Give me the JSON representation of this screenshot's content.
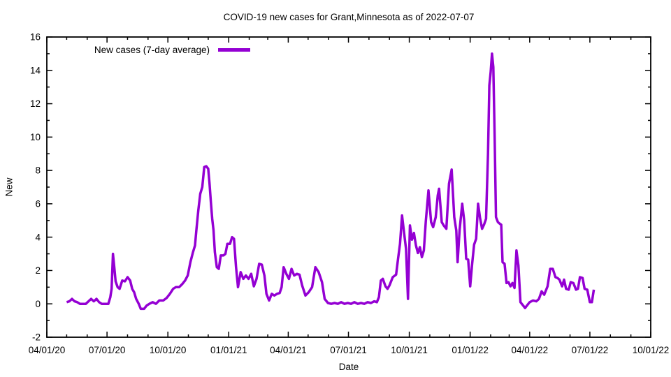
{
  "chart_data": {
    "type": "line",
    "title": "COVID-19 new cases for Grant,Minnesota as of 2022-07-07",
    "xlabel": "Date",
    "ylabel": "New",
    "grid": false,
    "legend_position": "top-left-inside",
    "background": "#ffffff",
    "frame_color": "#000000",
    "line_width": 3.5,
    "ylim": [
      -2,
      16
    ],
    "xlim": [
      "2020-04-01",
      "2022-10-01"
    ],
    "y_ticks": [
      -2,
      0,
      2,
      4,
      6,
      8,
      10,
      12,
      14,
      16
    ],
    "y_minor_step": 1,
    "x_minor": "monthly",
    "x_ticks": [
      {
        "date": "2020-04-01",
        "label": "04/01/20"
      },
      {
        "date": "2020-07-01",
        "label": "07/01/20"
      },
      {
        "date": "2020-10-01",
        "label": "10/01/20"
      },
      {
        "date": "2021-01-01",
        "label": "01/01/21"
      },
      {
        "date": "2021-04-01",
        "label": "04/01/21"
      },
      {
        "date": "2021-07-01",
        "label": "07/01/21"
      },
      {
        "date": "2021-10-01",
        "label": "10/01/21"
      },
      {
        "date": "2022-01-01",
        "label": "01/01/22"
      },
      {
        "date": "2022-04-01",
        "label": "04/01/22"
      },
      {
        "date": "2022-07-01",
        "label": "07/01/22"
      },
      {
        "date": "2022-10-01",
        "label": "10/01/22"
      }
    ],
    "series": [
      {
        "name": "New cases (7-day average)",
        "color": "#9400d3",
        "points": [
          [
            "2020-05-01",
            0.1
          ],
          [
            "2020-05-05",
            0.15
          ],
          [
            "2020-05-09",
            0.3
          ],
          [
            "2020-05-13",
            0.15
          ],
          [
            "2020-05-17",
            0.1
          ],
          [
            "2020-05-21",
            0
          ],
          [
            "2020-05-26",
            0
          ],
          [
            "2020-05-30",
            0
          ],
          [
            "2020-06-03",
            0.15
          ],
          [
            "2020-06-07",
            0.3
          ],
          [
            "2020-06-11",
            0.15
          ],
          [
            "2020-06-15",
            0.3
          ],
          [
            "2020-06-19",
            0.1
          ],
          [
            "2020-06-23",
            0
          ],
          [
            "2020-06-28",
            0
          ],
          [
            "2020-07-03",
            0
          ],
          [
            "2020-07-06",
            0.4
          ],
          [
            "2020-07-08",
            0.9
          ],
          [
            "2020-07-10",
            3.0
          ],
          [
            "2020-07-12",
            2.2
          ],
          [
            "2020-07-14",
            1.35
          ],
          [
            "2020-07-17",
            1.0
          ],
          [
            "2020-07-20",
            0.9
          ],
          [
            "2020-07-24",
            1.4
          ],
          [
            "2020-07-28",
            1.35
          ],
          [
            "2020-08-01",
            1.6
          ],
          [
            "2020-08-05",
            1.4
          ],
          [
            "2020-08-08",
            0.9
          ],
          [
            "2020-08-11",
            0.7
          ],
          [
            "2020-08-14",
            0.3
          ],
          [
            "2020-08-18",
            0
          ],
          [
            "2020-08-21",
            -0.3
          ],
          [
            "2020-08-26",
            -0.3
          ],
          [
            "2020-08-30",
            -0.1
          ],
          [
            "2020-09-03",
            0
          ],
          [
            "2020-09-08",
            0.1
          ],
          [
            "2020-09-13",
            0
          ],
          [
            "2020-09-18",
            0.2
          ],
          [
            "2020-09-24",
            0.2
          ],
          [
            "2020-09-29",
            0.35
          ],
          [
            "2020-10-04",
            0.6
          ],
          [
            "2020-10-09",
            0.9
          ],
          [
            "2020-10-13",
            1.0
          ],
          [
            "2020-10-18",
            1.0
          ],
          [
            "2020-10-23",
            1.2
          ],
          [
            "2020-10-27",
            1.4
          ],
          [
            "2020-10-31",
            1.7
          ],
          [
            "2020-11-04",
            2.5
          ],
          [
            "2020-11-08",
            3.1
          ],
          [
            "2020-11-11",
            3.5
          ],
          [
            "2020-11-13",
            4.4
          ],
          [
            "2020-11-16",
            5.6
          ],
          [
            "2020-11-19",
            6.6
          ],
          [
            "2020-11-22",
            7.0
          ],
          [
            "2020-11-25",
            8.2
          ],
          [
            "2020-11-28",
            8.25
          ],
          [
            "2020-12-01",
            8.1
          ],
          [
            "2020-12-03",
            7.2
          ],
          [
            "2020-12-05",
            6.1
          ],
          [
            "2020-12-07",
            5.1
          ],
          [
            "2020-12-09",
            4.4
          ],
          [
            "2020-12-11",
            3.1
          ],
          [
            "2020-12-14",
            2.2
          ],
          [
            "2020-12-17",
            2.1
          ],
          [
            "2020-12-20",
            2.9
          ],
          [
            "2020-12-24",
            2.9
          ],
          [
            "2020-12-27",
            3.0
          ],
          [
            "2020-12-30",
            3.6
          ],
          [
            "2021-01-03",
            3.6
          ],
          [
            "2021-01-06",
            4.0
          ],
          [
            "2021-01-09",
            3.9
          ],
          [
            "2021-01-12",
            2.2
          ],
          [
            "2021-01-15",
            1.0
          ],
          [
            "2021-01-19",
            1.9
          ],
          [
            "2021-01-23",
            1.5
          ],
          [
            "2021-01-27",
            1.7
          ],
          [
            "2021-01-31",
            1.5
          ],
          [
            "2021-02-04",
            1.8
          ],
          [
            "2021-02-08",
            1.05
          ],
          [
            "2021-02-12",
            1.5
          ],
          [
            "2021-02-16",
            2.4
          ],
          [
            "2021-02-20",
            2.35
          ],
          [
            "2021-02-24",
            1.7
          ],
          [
            "2021-02-27",
            0.6
          ],
          [
            "2021-03-03",
            0.2
          ],
          [
            "2021-03-07",
            0.6
          ],
          [
            "2021-03-11",
            0.5
          ],
          [
            "2021-03-15",
            0.6
          ],
          [
            "2021-03-19",
            0.65
          ],
          [
            "2021-03-22",
            1.0
          ],
          [
            "2021-03-25",
            2.2
          ],
          [
            "2021-03-29",
            1.8
          ],
          [
            "2021-04-02",
            1.5
          ],
          [
            "2021-04-06",
            2.1
          ],
          [
            "2021-04-10",
            1.7
          ],
          [
            "2021-04-14",
            1.8
          ],
          [
            "2021-04-18",
            1.75
          ],
          [
            "2021-04-22",
            1.1
          ],
          [
            "2021-04-27",
            0.5
          ],
          [
            "2021-05-02",
            0.7
          ],
          [
            "2021-05-07",
            1.0
          ],
          [
            "2021-05-12",
            2.2
          ],
          [
            "2021-05-17",
            1.9
          ],
          [
            "2021-05-22",
            1.3
          ],
          [
            "2021-05-26",
            0.3
          ],
          [
            "2021-05-31",
            0.05
          ],
          [
            "2021-06-05",
            0
          ],
          [
            "2021-06-10",
            0.05
          ],
          [
            "2021-06-15",
            0
          ],
          [
            "2021-06-20",
            0.1
          ],
          [
            "2021-06-25",
            0
          ],
          [
            "2021-06-30",
            0.05
          ],
          [
            "2021-07-05",
            0
          ],
          [
            "2021-07-10",
            0.1
          ],
          [
            "2021-07-15",
            0
          ],
          [
            "2021-07-20",
            0.05
          ],
          [
            "2021-07-25",
            0
          ],
          [
            "2021-07-30",
            0.1
          ],
          [
            "2021-08-04",
            0.05
          ],
          [
            "2021-08-09",
            0.15
          ],
          [
            "2021-08-13",
            0.1
          ],
          [
            "2021-08-16",
            0.4
          ],
          [
            "2021-08-19",
            1.4
          ],
          [
            "2021-08-22",
            1.5
          ],
          [
            "2021-08-26",
            1.05
          ],
          [
            "2021-08-29",
            0.9
          ],
          [
            "2021-09-01",
            1.1
          ],
          [
            "2021-09-06",
            1.6
          ],
          [
            "2021-09-11",
            1.75
          ],
          [
            "2021-09-14",
            2.7
          ],
          [
            "2021-09-17",
            3.6
          ],
          [
            "2021-09-20",
            5.3
          ],
          [
            "2021-09-23",
            4.3
          ],
          [
            "2021-09-26",
            3.3
          ],
          [
            "2021-09-29",
            0.3
          ],
          [
            "2021-10-02",
            4.7
          ],
          [
            "2021-10-05",
            3.85
          ],
          [
            "2021-10-08",
            4.25
          ],
          [
            "2021-10-11",
            3.5
          ],
          [
            "2021-10-14",
            3.05
          ],
          [
            "2021-10-17",
            3.4
          ],
          [
            "2021-10-20",
            2.8
          ],
          [
            "2021-10-23",
            3.2
          ],
          [
            "2021-10-26",
            4.95
          ],
          [
            "2021-10-30",
            6.8
          ],
          [
            "2021-11-03",
            4.9
          ],
          [
            "2021-11-06",
            4.6
          ],
          [
            "2021-11-10",
            5.2
          ],
          [
            "2021-11-13",
            6.5
          ],
          [
            "2021-11-15",
            6.9
          ],
          [
            "2021-11-19",
            4.9
          ],
          [
            "2021-11-22",
            4.7
          ],
          [
            "2021-11-26",
            4.5
          ],
          [
            "2021-11-30",
            7.2
          ],
          [
            "2021-12-04",
            8.05
          ],
          [
            "2021-12-08",
            5.2
          ],
          [
            "2021-12-11",
            4.4
          ],
          [
            "2021-12-13",
            2.5
          ],
          [
            "2021-12-16",
            4.4
          ],
          [
            "2021-12-20",
            6.0
          ],
          [
            "2021-12-23",
            5.0
          ],
          [
            "2021-12-26",
            2.7
          ],
          [
            "2021-12-29",
            2.65
          ],
          [
            "2022-01-01",
            1.05
          ],
          [
            "2022-01-04",
            2.4
          ],
          [
            "2022-01-07",
            3.55
          ],
          [
            "2022-01-10",
            3.9
          ],
          [
            "2022-01-13",
            6.0
          ],
          [
            "2022-01-16",
            5.15
          ],
          [
            "2022-01-19",
            4.5
          ],
          [
            "2022-01-22",
            4.75
          ],
          [
            "2022-01-25",
            5.1
          ],
          [
            "2022-01-28",
            9.0
          ],
          [
            "2022-01-30",
            13.1
          ],
          [
            "2022-02-01",
            13.9
          ],
          [
            "2022-02-03",
            15.0
          ],
          [
            "2022-02-05",
            14.2
          ],
          [
            "2022-02-07",
            10.0
          ],
          [
            "2022-02-09",
            5.2
          ],
          [
            "2022-02-12",
            4.9
          ],
          [
            "2022-02-15",
            4.8
          ],
          [
            "2022-02-17",
            4.75
          ],
          [
            "2022-02-19",
            2.5
          ],
          [
            "2022-02-22",
            2.4
          ],
          [
            "2022-02-25",
            1.25
          ],
          [
            "2022-02-28",
            1.3
          ],
          [
            "2022-03-03",
            1.05
          ],
          [
            "2022-03-06",
            1.25
          ],
          [
            "2022-03-09",
            0.95
          ],
          [
            "2022-03-12",
            3.2
          ],
          [
            "2022-03-15",
            2.3
          ],
          [
            "2022-03-18",
            0.1
          ],
          [
            "2022-03-22",
            -0.1
          ],
          [
            "2022-03-25",
            -0.25
          ],
          [
            "2022-03-28",
            -0.1
          ],
          [
            "2022-04-01",
            0.1
          ],
          [
            "2022-04-06",
            0.2
          ],
          [
            "2022-04-11",
            0.15
          ],
          [
            "2022-04-15",
            0.3
          ],
          [
            "2022-04-19",
            0.75
          ],
          [
            "2022-04-23",
            0.55
          ],
          [
            "2022-04-28",
            1.05
          ],
          [
            "2022-05-02",
            2.1
          ],
          [
            "2022-05-06",
            2.1
          ],
          [
            "2022-05-10",
            1.6
          ],
          [
            "2022-05-13",
            1.55
          ],
          [
            "2022-05-16",
            1.45
          ],
          [
            "2022-05-20",
            1.05
          ],
          [
            "2022-05-23",
            1.45
          ],
          [
            "2022-05-26",
            0.9
          ],
          [
            "2022-05-30",
            0.85
          ],
          [
            "2022-06-02",
            1.3
          ],
          [
            "2022-06-06",
            1.25
          ],
          [
            "2022-06-10",
            0.85
          ],
          [
            "2022-06-13",
            0.9
          ],
          [
            "2022-06-16",
            1.6
          ],
          [
            "2022-06-20",
            1.55
          ],
          [
            "2022-06-23",
            0.9
          ],
          [
            "2022-06-27",
            0.85
          ],
          [
            "2022-07-01",
            0.1
          ],
          [
            "2022-07-04",
            0.1
          ],
          [
            "2022-07-07",
            0.85
          ]
        ]
      }
    ]
  },
  "colors": {
    "accent": "#9400d3",
    "frame": "#000000",
    "background": "#ffffff",
    "text": "#000000"
  }
}
